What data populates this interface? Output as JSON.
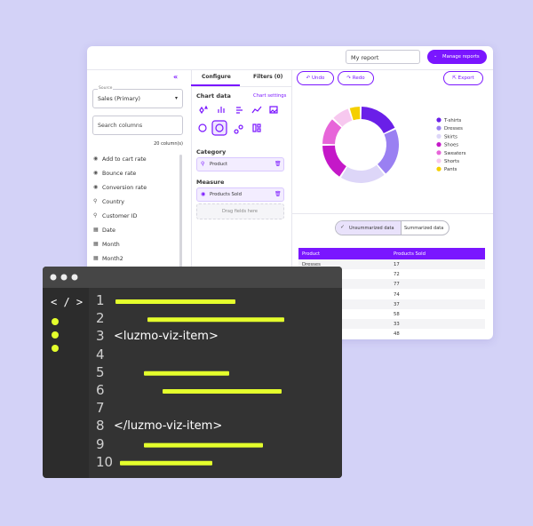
{
  "header": {
    "report_name": "My report",
    "manage_button": "Manage reports"
  },
  "sidebar": {
    "source_label": "Source",
    "source_value": "Sales (Primary)",
    "search_placeholder": "Search columns",
    "column_count": "20 column(s)",
    "columns": [
      {
        "label": "Add to cart rate",
        "kind": "measure"
      },
      {
        "label": "Bounce rate",
        "kind": "measure"
      },
      {
        "label": "Conversion rate",
        "kind": "measure"
      },
      {
        "label": "Country",
        "kind": "dimension"
      },
      {
        "label": "Customer ID",
        "kind": "dimension"
      },
      {
        "label": "Date",
        "kind": "date"
      },
      {
        "label": "Month",
        "kind": "date"
      },
      {
        "label": "Month2",
        "kind": "date"
      }
    ]
  },
  "config": {
    "tabs": [
      "Configure",
      "Filters (0)"
    ],
    "chart_data": "Chart data",
    "chart_settings": "Chart settings",
    "category_label": "Category",
    "category_value": "Product",
    "measure_label": "Measure",
    "measure_value": "Products Sold",
    "drop_hint": "Drag fields here"
  },
  "toolbar": {
    "undo": "Undo",
    "redo": "Redo",
    "export": "Export"
  },
  "donut": {
    "series": [
      {
        "name": "T-shirts",
        "color": "#6a1fe8",
        "value": 18
      },
      {
        "name": "Dresses",
        "color": "#9a80f2",
        "value": 21
      },
      {
        "name": "Skirts",
        "color": "#ddd6f8",
        "value": 20
      },
      {
        "name": "Shoes",
        "color": "#c418c8",
        "value": 16
      },
      {
        "name": "Sweaters",
        "color": "#e765d9",
        "value": 12
      },
      {
        "name": "Shorts",
        "color": "#f7c8ef",
        "value": 8
      },
      {
        "name": "Pants",
        "color": "#f5cf00",
        "value": 5
      }
    ]
  },
  "toggle": {
    "unsummarized": "Unsummarized data",
    "summarized": "Summarized data"
  },
  "table": {
    "columns": [
      "Product",
      "Products Sold"
    ],
    "rows": [
      [
        "Dresses",
        17
      ],
      [
        null,
        72
      ],
      [
        null,
        77
      ],
      [
        null,
        74
      ],
      [
        null,
        37
      ],
      [
        null,
        58
      ],
      [
        null,
        33
      ],
      [
        null,
        48
      ]
    ]
  },
  "editor": {
    "tag_icon": "< / >",
    "lines": [
      {
        "number": 1
      },
      {
        "number": 2
      },
      {
        "number": 3,
        "code": "<luzmo-viz-item>"
      },
      {
        "number": 4
      },
      {
        "number": 5
      },
      {
        "number": 6
      },
      {
        "number": 7
      },
      {
        "number": 8,
        "code": "</luzmo-viz-item>"
      },
      {
        "number": 9
      },
      {
        "number": 10
      }
    ]
  }
}
